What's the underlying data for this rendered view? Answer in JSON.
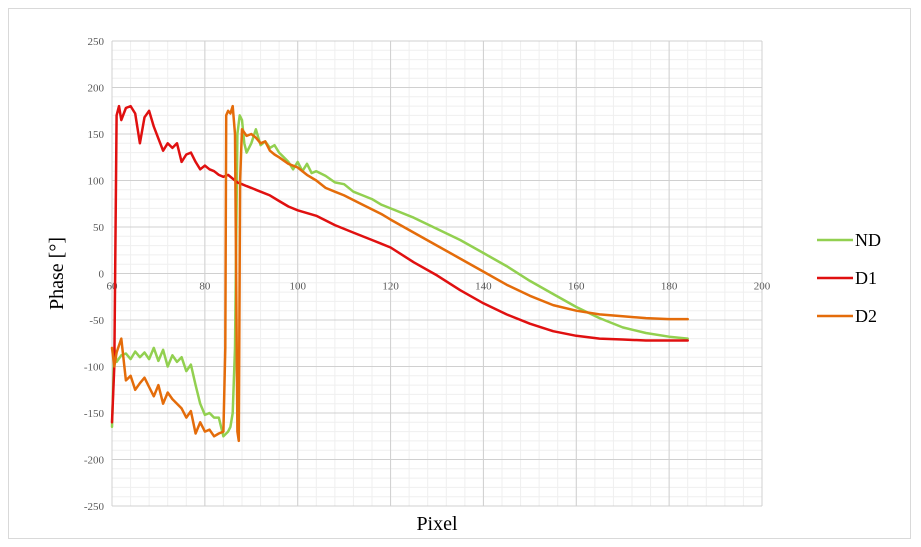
{
  "chart_data": {
    "type": "line",
    "title": "",
    "xlabel": "Pixel",
    "ylabel": "Phase [°]",
    "xlim": [
      60,
      200
    ],
    "ylim": [
      -250,
      250
    ],
    "x_ticks": [
      60,
      80,
      100,
      120,
      140,
      160,
      180,
      200
    ],
    "y_ticks": [
      -250,
      -200,
      -150,
      -100,
      -50,
      0,
      50,
      100,
      150,
      200,
      250
    ],
    "grid": true,
    "legend_position": "right",
    "series": [
      {
        "name": "ND",
        "color": "#92d050",
        "points": [
          [
            60,
            -165
          ],
          [
            60.5,
            -80
          ],
          [
            61,
            -95
          ],
          [
            62,
            -88
          ],
          [
            63,
            -86
          ],
          [
            64,
            -92
          ],
          [
            65,
            -84
          ],
          [
            66,
            -90
          ],
          [
            67,
            -85
          ],
          [
            68,
            -92
          ],
          [
            69,
            -80
          ],
          [
            70,
            -94
          ],
          [
            71,
            -82
          ],
          [
            72,
            -100
          ],
          [
            73,
            -88
          ],
          [
            74,
            -95
          ],
          [
            75,
            -90
          ],
          [
            76,
            -105
          ],
          [
            77,
            -98
          ],
          [
            78,
            -120
          ],
          [
            79,
            -140
          ],
          [
            80,
            -152
          ],
          [
            81,
            -150
          ],
          [
            82,
            -155
          ],
          [
            83,
            -155
          ],
          [
            84,
            -175
          ],
          [
            85,
            -170
          ],
          [
            85.5,
            -165
          ],
          [
            86,
            -150
          ],
          [
            86.5,
            -80
          ],
          [
            87,
            150
          ],
          [
            87.5,
            170
          ],
          [
            88,
            165
          ],
          [
            88.5,
            140
          ],
          [
            89,
            130
          ],
          [
            90,
            140
          ],
          [
            91,
            155
          ],
          [
            92,
            138
          ],
          [
            93,
            142
          ],
          [
            94,
            135
          ],
          [
            95,
            138
          ],
          [
            96,
            130
          ],
          [
            97,
            125
          ],
          [
            98,
            120
          ],
          [
            99,
            112
          ],
          [
            100,
            120
          ],
          [
            101,
            110
          ],
          [
            102,
            118
          ],
          [
            103,
            108
          ],
          [
            104,
            110
          ],
          [
            106,
            105
          ],
          [
            108,
            98
          ],
          [
            110,
            96
          ],
          [
            112,
            88
          ],
          [
            114,
            84
          ],
          [
            116,
            80
          ],
          [
            118,
            74
          ],
          [
            120,
            70
          ],
          [
            125,
            60
          ],
          [
            130,
            48
          ],
          [
            135,
            36
          ],
          [
            140,
            22
          ],
          [
            145,
            8
          ],
          [
            150,
            -8
          ],
          [
            155,
            -22
          ],
          [
            160,
            -36
          ],
          [
            165,
            -48
          ],
          [
            170,
            -58
          ],
          [
            175,
            -64
          ],
          [
            180,
            -68
          ],
          [
            184,
            -70
          ]
        ]
      },
      {
        "name": "D1",
        "color": "#e01010",
        "points": [
          [
            60,
            -160
          ],
          [
            60.5,
            -100
          ],
          [
            61,
            170
          ],
          [
            61.5,
            180
          ],
          [
            62,
            165
          ],
          [
            63,
            178
          ],
          [
            64,
            180
          ],
          [
            65,
            172
          ],
          [
            66,
            140
          ],
          [
            67,
            168
          ],
          [
            68,
            175
          ],
          [
            69,
            158
          ],
          [
            70,
            145
          ],
          [
            71,
            132
          ],
          [
            72,
            140
          ],
          [
            73,
            135
          ],
          [
            74,
            140
          ],
          [
            75,
            120
          ],
          [
            76,
            128
          ],
          [
            77,
            130
          ],
          [
            78,
            120
          ],
          [
            79,
            112
          ],
          [
            80,
            116
          ],
          [
            81,
            112
          ],
          [
            82,
            110
          ],
          [
            83,
            106
          ],
          [
            84,
            104
          ],
          [
            85,
            106
          ],
          [
            86,
            102
          ],
          [
            87,
            98
          ],
          [
            88,
            96
          ],
          [
            89,
            94
          ],
          [
            90,
            92
          ],
          [
            91,
            90
          ],
          [
            92,
            88
          ],
          [
            94,
            84
          ],
          [
            96,
            78
          ],
          [
            98,
            72
          ],
          [
            100,
            68
          ],
          [
            104,
            62
          ],
          [
            108,
            52
          ],
          [
            112,
            44
          ],
          [
            116,
            36
          ],
          [
            120,
            28
          ],
          [
            125,
            12
          ],
          [
            130,
            -2
          ],
          [
            135,
            -18
          ],
          [
            140,
            -32
          ],
          [
            145,
            -44
          ],
          [
            150,
            -54
          ],
          [
            155,
            -62
          ],
          [
            160,
            -67
          ],
          [
            165,
            -70
          ],
          [
            170,
            -71
          ],
          [
            175,
            -72
          ],
          [
            180,
            -72
          ],
          [
            184,
            -72
          ]
        ]
      },
      {
        "name": "D2",
        "color": "#e46c0a",
        "points": [
          [
            60,
            -80
          ],
          [
            60.5,
            -100
          ],
          [
            61,
            -85
          ],
          [
            62,
            -70
          ],
          [
            63,
            -115
          ],
          [
            64,
            -110
          ],
          [
            65,
            -125
          ],
          [
            66,
            -118
          ],
          [
            67,
            -112
          ],
          [
            68,
            -122
          ],
          [
            69,
            -132
          ],
          [
            70,
            -120
          ],
          [
            71,
            -140
          ],
          [
            72,
            -128
          ],
          [
            73,
            -135
          ],
          [
            74,
            -140
          ],
          [
            75,
            -145
          ],
          [
            76,
            -155
          ],
          [
            77,
            -148
          ],
          [
            78,
            -172
          ],
          [
            79,
            -160
          ],
          [
            80,
            -170
          ],
          [
            81,
            -168
          ],
          [
            82,
            -175
          ],
          [
            83,
            -172
          ],
          [
            84,
            -170
          ],
          [
            84.4,
            -80
          ],
          [
            84.6,
            170
          ],
          [
            85,
            175
          ],
          [
            85.5,
            172
          ],
          [
            86,
            180
          ],
          [
            86.5,
            150
          ],
          [
            87,
            -170
          ],
          [
            87.3,
            -180
          ],
          [
            87.6,
            100
          ],
          [
            88,
            155
          ],
          [
            89,
            148
          ],
          [
            90,
            150
          ],
          [
            91,
            146
          ],
          [
            92,
            140
          ],
          [
            93,
            142
          ],
          [
            94,
            132
          ],
          [
            95,
            128
          ],
          [
            96,
            125
          ],
          [
            98,
            118
          ],
          [
            100,
            114
          ],
          [
            102,
            106
          ],
          [
            104,
            100
          ],
          [
            106,
            92
          ],
          [
            108,
            88
          ],
          [
            110,
            84
          ],
          [
            114,
            74
          ],
          [
            118,
            64
          ],
          [
            120,
            58
          ],
          [
            125,
            44
          ],
          [
            130,
            30
          ],
          [
            135,
            16
          ],
          [
            140,
            2
          ],
          [
            145,
            -12
          ],
          [
            150,
            -24
          ],
          [
            155,
            -34
          ],
          [
            160,
            -40
          ],
          [
            165,
            -44
          ],
          [
            170,
            -46
          ],
          [
            175,
            -48
          ],
          [
            180,
            -49
          ],
          [
            184,
            -49
          ]
        ]
      }
    ]
  }
}
